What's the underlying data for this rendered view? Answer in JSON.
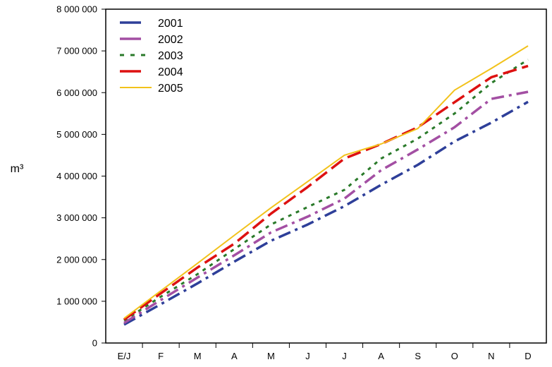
{
  "chart_data": {
    "type": "line",
    "categories": [
      "E/J",
      "F",
      "M",
      "A",
      "M",
      "J",
      "J",
      "A",
      "S",
      "O",
      "N",
      "D"
    ],
    "ylabel": "m³",
    "ylim": [
      0,
      8000000
    ],
    "y_ticks": [
      0,
      1000000,
      2000000,
      3000000,
      4000000,
      5000000,
      6000000,
      7000000,
      8000000
    ],
    "y_tick_labels": [
      "0",
      "1 000 000",
      "2 000 000",
      "3 000 000",
      "4 000 000",
      "5 000 000",
      "6 000 000",
      "7 000 000",
      "8 000 000"
    ],
    "legend_position": "top-left",
    "grid": false,
    "series": [
      {
        "name": "2001",
        "color": "#2e3f99",
        "dash": "dash-dot",
        "values": [
          440000,
          930000,
          1430000,
          1950000,
          2450000,
          2840000,
          3280000,
          3790000,
          4270000,
          4830000,
          5280000,
          5780000
        ]
      },
      {
        "name": "2002",
        "color": "#a34fa3",
        "dash": "dash-dot",
        "values": [
          480000,
          1030000,
          1570000,
          2100000,
          2650000,
          3030000,
          3460000,
          4140000,
          4640000,
          5170000,
          5850000,
          6020000
        ]
      },
      {
        "name": "2003",
        "color": "#2a7a2a",
        "dash": "dot",
        "values": [
          540000,
          1110000,
          1650000,
          2250000,
          2840000,
          3260000,
          3670000,
          4420000,
          4900000,
          5500000,
          6230000,
          6790000
        ]
      },
      {
        "name": "2004",
        "color": "#dd1111",
        "dash": "dash",
        "values": [
          560000,
          1190000,
          1810000,
          2380000,
          3100000,
          3740000,
          4420000,
          4770000,
          5170000,
          5770000,
          6370000,
          6640000
        ]
      },
      {
        "name": "2005",
        "color": "#f2c21b",
        "dash": "solid",
        "values": [
          590000,
          1250000,
          1910000,
          2580000,
          3240000,
          3870000,
          4500000,
          4770000,
          5140000,
          6060000,
          6580000,
          7120000
        ]
      }
    ]
  }
}
